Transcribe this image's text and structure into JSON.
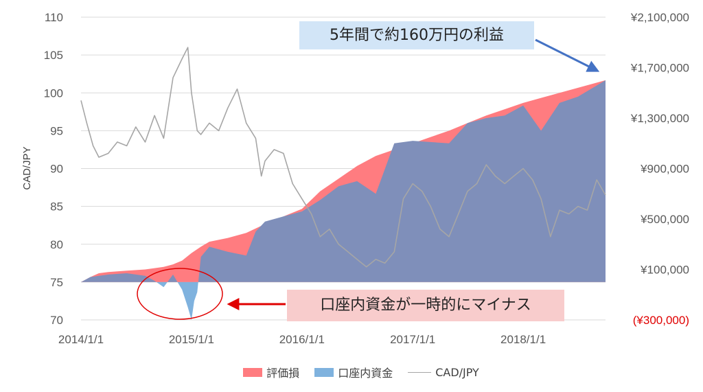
{
  "chart_data": {
    "type": "area",
    "ylabel": "CAD/JPY",
    "x_ticks": [
      "2014/1/1",
      "2015/1/1",
      "2016/1/1",
      "2017/1/1",
      "2018/1/1"
    ],
    "x_range": [
      "2014-01-01",
      "2018-09-30"
    ],
    "y_left": {
      "range": [
        70,
        110
      ],
      "ticks": [
        "70",
        "75",
        "80",
        "85",
        "90",
        "95",
        "100",
        "105",
        "110"
      ]
    },
    "y_right": {
      "range": [
        -300000,
        2100000
      ],
      "ticks": [
        "(¥300,000)",
        "¥100,000",
        "¥500,000",
        "¥900,000",
        "¥1,300,000",
        "¥1,700,000",
        "¥2,100,000"
      ]
    },
    "grid": true,
    "legend_position": "bottom",
    "legend": [
      "評価損",
      "口座内資金",
      "CAD/JPY"
    ],
    "series": [
      {
        "name": "評価損",
        "axis": "right",
        "color": "#ff7c80",
        "points": [
          [
            "2014-01-01",
            0
          ],
          [
            "2014-02-01",
            40000
          ],
          [
            "2014-03-01",
            70000
          ],
          [
            "2014-04-01",
            80000
          ],
          [
            "2014-06-01",
            90000
          ],
          [
            "2014-08-01",
            100000
          ],
          [
            "2014-10-01",
            120000
          ],
          [
            "2014-11-01",
            140000
          ],
          [
            "2014-12-01",
            170000
          ],
          [
            "2015-01-01",
            230000
          ],
          [
            "2015-02-01",
            280000
          ],
          [
            "2015-03-01",
            320000
          ],
          [
            "2015-05-01",
            350000
          ],
          [
            "2015-07-01",
            390000
          ],
          [
            "2015-09-01",
            460000
          ],
          [
            "2015-11-01",
            520000
          ],
          [
            "2016-01-01",
            580000
          ],
          [
            "2016-03-01",
            720000
          ],
          [
            "2016-05-01",
            820000
          ],
          [
            "2016-07-01",
            920000
          ],
          [
            "2016-09-01",
            1000000
          ],
          [
            "2016-11-01",
            1050000
          ],
          [
            "2017-01-01",
            1100000
          ],
          [
            "2017-03-01",
            1150000
          ],
          [
            "2017-05-01",
            1200000
          ],
          [
            "2017-07-01",
            1260000
          ],
          [
            "2017-09-01",
            1320000
          ],
          [
            "2017-11-01",
            1370000
          ],
          [
            "2018-01-01",
            1420000
          ],
          [
            "2018-03-01",
            1460000
          ],
          [
            "2018-05-01",
            1500000
          ],
          [
            "2018-07-01",
            1540000
          ],
          [
            "2018-09-30",
            1600000
          ]
        ]
      },
      {
        "name": "口座内資金",
        "axis": "right",
        "color": "#7f8fba",
        "negative_color": "#7fb2de",
        "points": [
          [
            "2014-01-01",
            0
          ],
          [
            "2014-02-01",
            40000
          ],
          [
            "2014-04-01",
            60000
          ],
          [
            "2014-06-01",
            70000
          ],
          [
            "2014-08-01",
            50000
          ],
          [
            "2014-09-01",
            10000
          ],
          [
            "2014-10-01",
            -40000
          ],
          [
            "2014-11-01",
            60000
          ],
          [
            "2014-12-01",
            -60000
          ],
          [
            "2014-12-20",
            -200000
          ],
          [
            "2015-01-01",
            -300000
          ],
          [
            "2015-01-10",
            -150000
          ],
          [
            "2015-01-20",
            -80000
          ],
          [
            "2015-02-01",
            200000
          ],
          [
            "2015-03-01",
            280000
          ],
          [
            "2015-05-01",
            240000
          ],
          [
            "2015-07-01",
            210000
          ],
          [
            "2015-08-01",
            400000
          ],
          [
            "2015-09-01",
            480000
          ],
          [
            "2015-11-01",
            520000
          ],
          [
            "2016-01-01",
            560000
          ],
          [
            "2016-03-01",
            650000
          ],
          [
            "2016-05-01",
            760000
          ],
          [
            "2016-07-01",
            800000
          ],
          [
            "2016-09-01",
            700000
          ],
          [
            "2016-11-01",
            1100000
          ],
          [
            "2017-01-01",
            1120000
          ],
          [
            "2017-03-01",
            1110000
          ],
          [
            "2017-05-01",
            1100000
          ],
          [
            "2017-07-01",
            1260000
          ],
          [
            "2017-09-01",
            1300000
          ],
          [
            "2017-11-01",
            1320000
          ],
          [
            "2018-01-01",
            1400000
          ],
          [
            "2018-03-01",
            1200000
          ],
          [
            "2018-05-01",
            1420000
          ],
          [
            "2018-07-01",
            1470000
          ],
          [
            "2018-09-30",
            1600000
          ]
        ]
      },
      {
        "name": "CAD/JPY",
        "axis": "left",
        "color": "#a6a6a6",
        "points": [
          [
            "2014-01-01",
            99
          ],
          [
            "2014-01-20",
            96
          ],
          [
            "2014-02-10",
            93
          ],
          [
            "2014-03-01",
            91.5
          ],
          [
            "2014-04-01",
            92
          ],
          [
            "2014-05-01",
            93.5
          ],
          [
            "2014-06-01",
            93
          ],
          [
            "2014-07-01",
            95.5
          ],
          [
            "2014-08-01",
            93.5
          ],
          [
            "2014-09-01",
            97
          ],
          [
            "2014-10-01",
            94
          ],
          [
            "2014-11-01",
            102
          ],
          [
            "2014-12-01",
            104.5
          ],
          [
            "2014-12-20",
            106
          ],
          [
            "2015-01-01",
            100
          ],
          [
            "2015-01-20",
            95
          ],
          [
            "2015-02-01",
            94.5
          ],
          [
            "2015-03-01",
            96
          ],
          [
            "2015-04-01",
            95
          ],
          [
            "2015-05-01",
            98
          ],
          [
            "2015-06-01",
            100.5
          ],
          [
            "2015-07-01",
            96
          ],
          [
            "2015-08-01",
            94
          ],
          [
            "2015-08-20",
            89
          ],
          [
            "2015-09-01",
            91
          ],
          [
            "2015-10-01",
            92.5
          ],
          [
            "2015-11-01",
            92
          ],
          [
            "2015-12-01",
            88
          ],
          [
            "2016-01-01",
            86
          ],
          [
            "2016-02-01",
            84
          ],
          [
            "2016-03-01",
            81
          ],
          [
            "2016-04-01",
            82
          ],
          [
            "2016-05-01",
            80
          ],
          [
            "2016-06-01",
            79
          ],
          [
            "2016-07-01",
            78
          ],
          [
            "2016-08-01",
            77
          ],
          [
            "2016-09-01",
            78
          ],
          [
            "2016-10-01",
            77.5
          ],
          [
            "2016-11-01",
            79
          ],
          [
            "2016-12-01",
            86
          ],
          [
            "2017-01-01",
            88
          ],
          [
            "2017-02-01",
            87
          ],
          [
            "2017-03-01",
            85
          ],
          [
            "2017-04-01",
            82
          ],
          [
            "2017-05-01",
            81
          ],
          [
            "2017-06-01",
            84
          ],
          [
            "2017-07-01",
            87
          ],
          [
            "2017-08-01",
            88
          ],
          [
            "2017-09-01",
            90.5
          ],
          [
            "2017-10-01",
            89
          ],
          [
            "2017-11-01",
            88
          ],
          [
            "2017-12-01",
            89
          ],
          [
            "2018-01-01",
            90
          ],
          [
            "2018-02-01",
            88.5
          ],
          [
            "2018-03-01",
            86
          ],
          [
            "2018-04-01",
            81
          ],
          [
            "2018-05-01",
            84.5
          ],
          [
            "2018-06-01",
            84
          ],
          [
            "2018-07-01",
            85
          ],
          [
            "2018-08-01",
            84.5
          ],
          [
            "2018-09-01",
            88.5
          ],
          [
            "2018-09-30",
            86.5
          ]
        ]
      }
    ],
    "annotations": [
      {
        "text": "5年間で約160万円の利益",
        "color": "#d2e5f7",
        "target": [
          "2018-09-30",
          1600000
        ]
      },
      {
        "text": "口座内資金が一時的にマイナス",
        "color": "#f8cccc",
        "target": [
          "2014-12-20",
          -200000
        ]
      }
    ]
  }
}
